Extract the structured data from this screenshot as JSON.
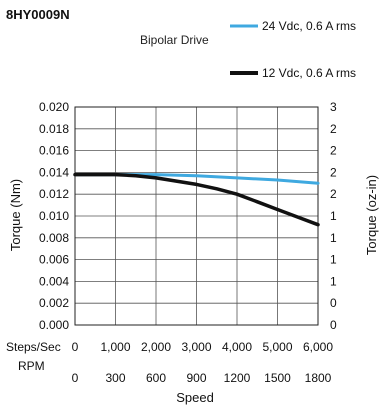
{
  "chart_data": {
    "type": "line",
    "model": "8HY0009N",
    "subtitle": "Bipolar Drive",
    "xlabel": "Speed",
    "ylabel_left": "Torque (Nm)",
    "ylabel_right": "Torque (oz-in)",
    "x_row_labels": {
      "steps": "Steps/Sec",
      "rpm": "RPM"
    },
    "x_steps_ticks": [
      "0",
      "1,000",
      "2,000",
      "3,000",
      "4,000",
      "5,000",
      "6,000"
    ],
    "x_rpm_ticks": [
      "0",
      "300",
      "600",
      "900",
      "1200",
      "1500",
      "1800"
    ],
    "y_left_ticks": [
      "0.000",
      "0.002",
      "0.004",
      "0.006",
      "0.008",
      "0.010",
      "0.012",
      "0.014",
      "0.016",
      "0.018",
      "0.020"
    ],
    "y_right_ticks": [
      "0",
      "0",
      "1",
      "1",
      "1",
      "1",
      "2",
      "2",
      "2",
      "2",
      "3"
    ],
    "xlim": [
      0,
      6000
    ],
    "ylim": [
      0,
      0.02
    ],
    "grid": true,
    "legend_position": "top-right",
    "series": [
      {
        "name": "24 Vdc, 0.6 A rms",
        "color": "#3fa9e0",
        "x": [
          0,
          1000,
          2000,
          3000,
          4000,
          5000,
          6000
        ],
        "y": [
          0.0138,
          0.0138,
          0.0138,
          0.0137,
          0.0135,
          0.0133,
          0.013
        ]
      },
      {
        "name": "12 Vdc, 0.6 A rms",
        "color": "#111111",
        "x": [
          0,
          1000,
          1500,
          2000,
          2500,
          3000,
          3500,
          4000,
          4500,
          5000,
          5500,
          6000
        ],
        "y": [
          0.0138,
          0.0138,
          0.0137,
          0.0135,
          0.0132,
          0.0129,
          0.0125,
          0.012,
          0.0113,
          0.0106,
          0.0099,
          0.0092
        ]
      }
    ]
  }
}
